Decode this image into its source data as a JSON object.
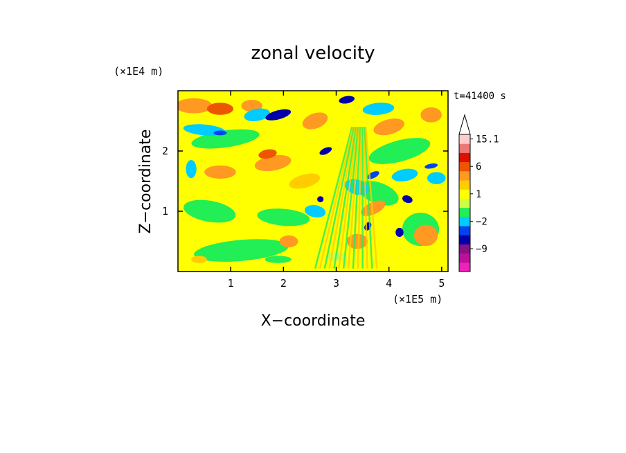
{
  "chart_data": {
    "type": "heatmap",
    "title": "zonal velocity",
    "xlabel": "X−coordinate",
    "ylabel": "Z−coordinate",
    "x_unit": "(×1E5 m)",
    "y_unit": "(×1E4 m)",
    "time_label": "t=41400 s",
    "xlim": [
      0,
      5.12
    ],
    "ylim": [
      0,
      3.0
    ],
    "x_ticks": [
      1,
      2,
      3,
      4,
      5
    ],
    "y_ticks": [
      1,
      2
    ],
    "colorbar": {
      "labels": [
        "15.1",
        "6",
        "1",
        "−2",
        "−9"
      ],
      "levels": [
        -15,
        -12,
        -9,
        -6,
        -4,
        -2,
        -1,
        0,
        1,
        2,
        4,
        6,
        9,
        12,
        15.1
      ],
      "colors": [
        "#ee22bb",
        "#bb1199",
        "#881188",
        "#0000aa",
        "#0044ee",
        "#00ccff",
        "#22ee55",
        "#ccff44",
        "#ffff00",
        "#ffcc00",
        "#ff9922",
        "#ee5500",
        "#dd1100",
        "#ee7777",
        "#ffcccc"
      ],
      "extend": "max"
    }
  }
}
